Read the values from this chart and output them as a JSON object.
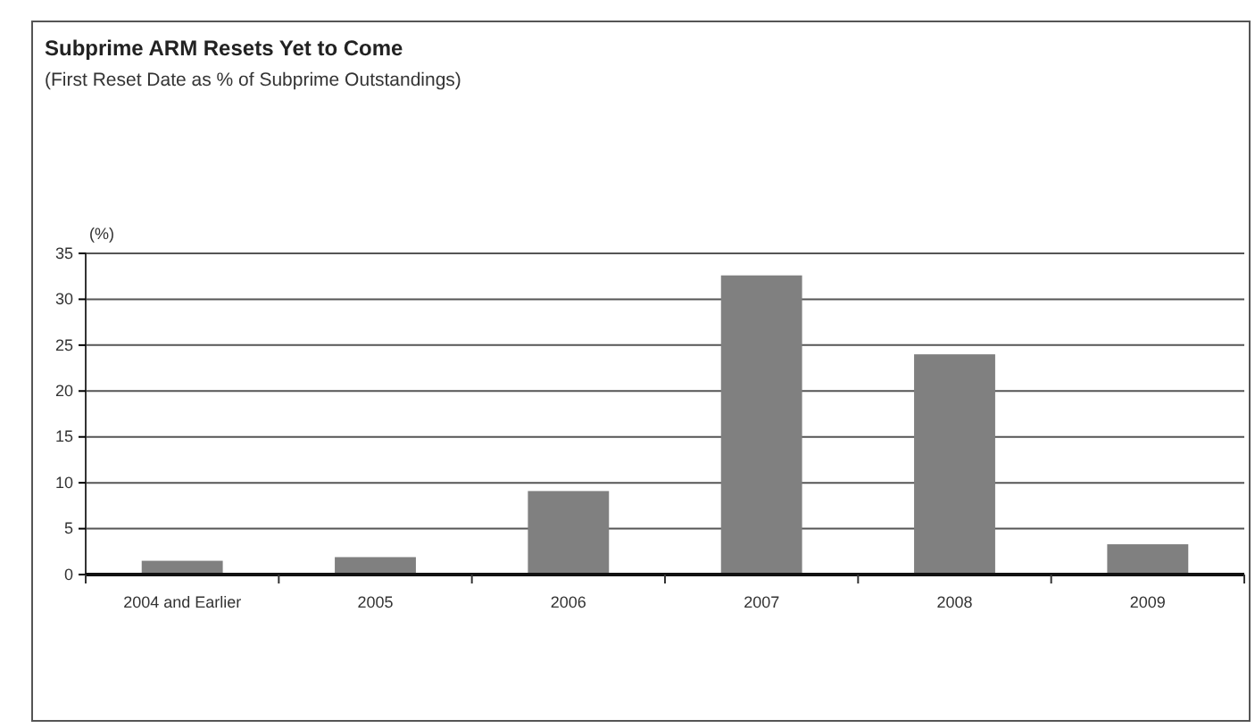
{
  "chart_data": {
    "type": "bar",
    "title": "Subprime ARM Resets Yet to Come",
    "subtitle": "(First Reset Date as % of Subprime Outstandings)",
    "ylabel": "(%)",
    "categories": [
      "2004 and Earlier",
      "2005",
      "2006",
      "2007",
      "2008",
      "2009"
    ],
    "values": [
      1.5,
      1.9,
      9.1,
      32.6,
      24.0,
      3.3
    ],
    "color": "#808080",
    "ylim": [
      0,
      35
    ],
    "yticks": [
      0,
      5,
      10,
      15,
      20,
      25,
      30,
      35
    ],
    "grid": "y"
  }
}
